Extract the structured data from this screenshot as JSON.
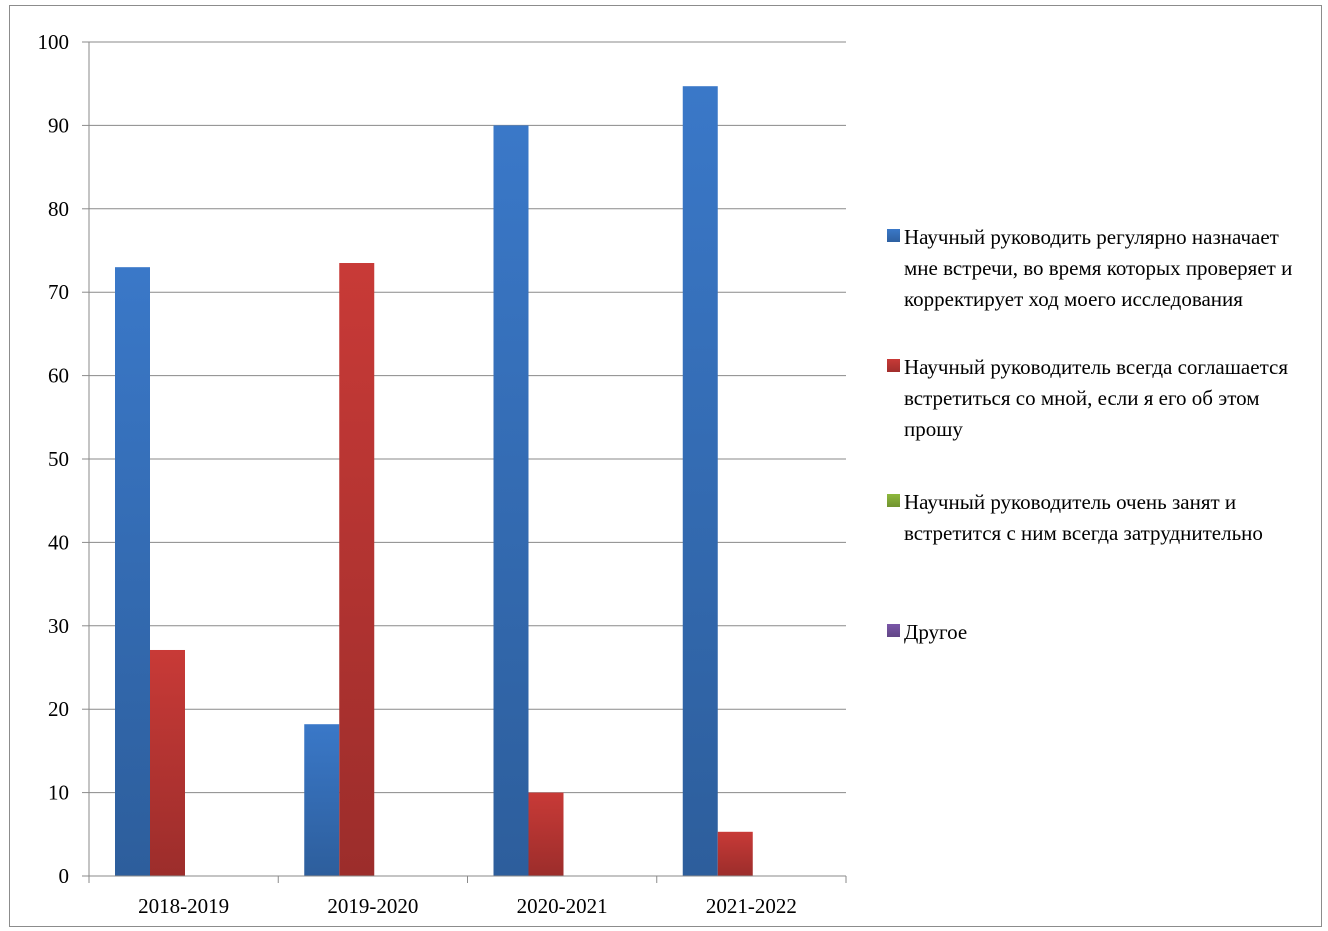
{
  "chart_data": {
    "type": "bar",
    "title": "",
    "xlabel": "",
    "ylabel": "",
    "categories": [
      "2018-2019",
      "2019-2020",
      "2020-2021",
      "2021-2022"
    ],
    "ylim": [
      0,
      100
    ],
    "yticks": [
      "0",
      "10",
      "20",
      "30",
      "40",
      "50",
      "60",
      "70",
      "80",
      "90",
      "100"
    ],
    "grid": true,
    "legend_position": "right",
    "series": [
      {
        "name": "Научный руководить регулярно назначает мне встречи, во время которых проверяет и корректирует ход моего исследования",
        "color": "#3a78c8",
        "values": [
          73,
          18.2,
          90,
          94.7
        ]
      },
      {
        "name": "Научный руководитель всегда соглашается встретиться со мной, если я его об этом прошу",
        "color": "#c83a37",
        "values": [
          27.1,
          73.5,
          10,
          5.3
        ]
      },
      {
        "name": "Научный руководитель очень занят и встретится с ним всегда затруднительно",
        "color": "#8db83c",
        "values": [
          0,
          0,
          0,
          0
        ]
      },
      {
        "name": "Другое",
        "color": "#7a57a8",
        "values": [
          0,
          0,
          0,
          0
        ]
      }
    ]
  }
}
